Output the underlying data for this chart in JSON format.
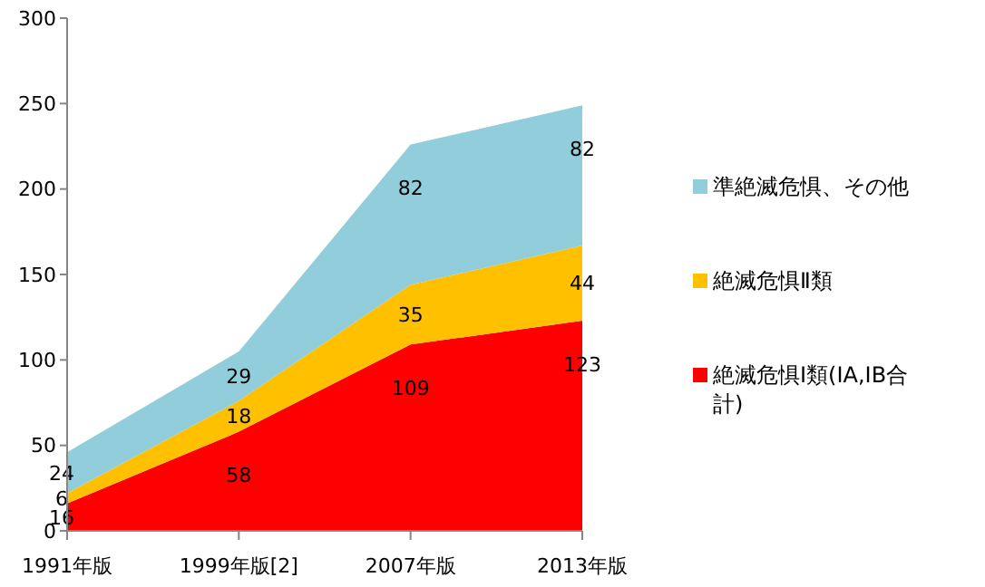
{
  "chart_data": {
    "type": "area",
    "stacked": true,
    "categories": [
      "1991年版",
      "1999年版[2]",
      "2007年版",
      "2013年版"
    ],
    "series": [
      {
        "name": "絶滅危惧Ⅰ類(ⅠA,ⅠB合計)",
        "color": "#ff0000",
        "values": [
          16,
          58,
          109,
          123
        ]
      },
      {
        "name": "絶滅危惧Ⅱ類",
        "color": "#ffc000",
        "values": [
          6,
          18,
          35,
          44
        ]
      },
      {
        "name": "準絶滅危惧、その他",
        "color": "#92cddc",
        "values": [
          24,
          29,
          82,
          82
        ]
      }
    ],
    "ylim": [
      0,
      300
    ],
    "yticks": [
      0,
      50,
      100,
      150,
      200,
      250,
      300
    ],
    "data_labels": true,
    "grid": false,
    "legend": "right"
  }
}
